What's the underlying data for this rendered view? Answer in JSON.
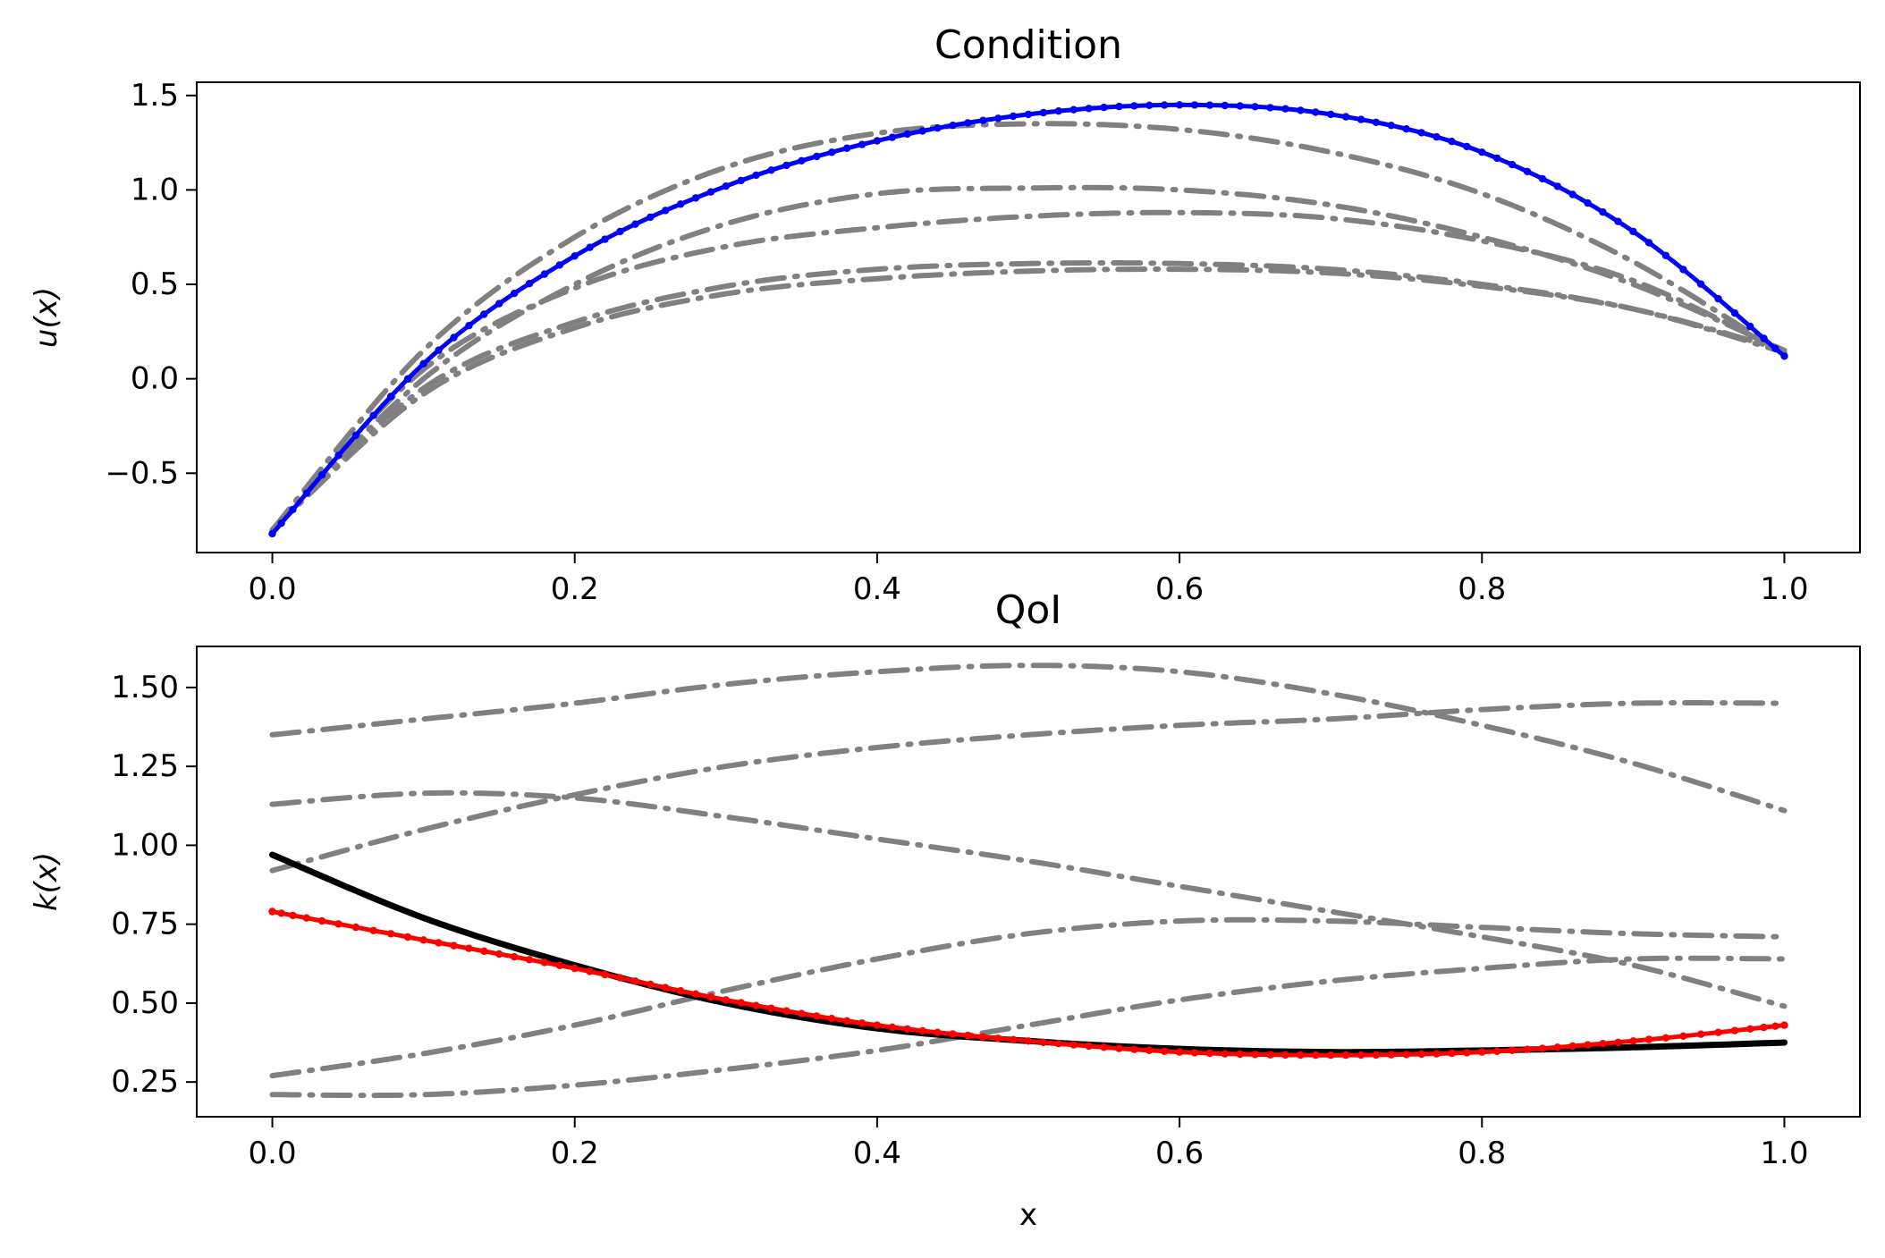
{
  "colors": {
    "gray": "#808080",
    "blue": "#0000ff",
    "red": "#ff0000",
    "black": "#000000"
  },
  "chart_data": [
    {
      "type": "line",
      "title": "Condition",
      "xlabel": "",
      "ylabel": "u(x)",
      "xlim": [
        -0.05,
        1.05
      ],
      "ylim": [
        -0.92,
        1.57
      ],
      "xticks": [
        0.0,
        0.2,
        0.4,
        0.6,
        0.8,
        1.0
      ],
      "xtick_labels": [
        "0.0",
        "0.2",
        "0.4",
        "0.6",
        "0.8",
        "1.0"
      ],
      "yticks": [
        -0.5,
        0.0,
        0.5,
        1.0,
        1.5
      ],
      "ytick_labels": [
        "−0.5",
        "0.0",
        "0.5",
        "1.0",
        "1.5"
      ],
      "grid": false,
      "x": [
        0.0,
        0.1,
        0.2,
        0.3,
        0.4,
        0.5,
        0.6,
        0.7,
        0.8,
        0.9,
        1.0
      ],
      "series": [
        {
          "style": "dashdot",
          "color": "gray",
          "values": [
            -0.8,
            0.15,
            0.75,
            1.12,
            1.3,
            1.35,
            1.32,
            1.2,
            0.98,
            0.62,
            0.13
          ]
        },
        {
          "style": "dashdot",
          "color": "gray",
          "values": [
            -0.8,
            0.0,
            0.5,
            0.82,
            0.98,
            1.01,
            1.0,
            0.92,
            0.75,
            0.5,
            0.15
          ]
        },
        {
          "style": "dashdot",
          "color": "gray",
          "values": [
            -0.8,
            0.05,
            0.48,
            0.7,
            0.8,
            0.86,
            0.88,
            0.85,
            0.73,
            0.52,
            0.14
          ]
        },
        {
          "style": "dashdot",
          "color": "gray",
          "values": [
            -0.8,
            -0.05,
            0.3,
            0.49,
            0.58,
            0.61,
            0.61,
            0.58,
            0.5,
            0.37,
            0.14
          ]
        },
        {
          "style": "dashdot",
          "color": "gray",
          "values": [
            -0.8,
            -0.08,
            0.27,
            0.45,
            0.53,
            0.57,
            0.58,
            0.56,
            0.49,
            0.37,
            0.15
          ]
        },
        {
          "style": "dotted-solid",
          "color": "blue",
          "values": [
            -0.82,
            0.08,
            0.65,
            1.02,
            1.26,
            1.4,
            1.45,
            1.4,
            1.2,
            0.78,
            0.12
          ]
        }
      ]
    },
    {
      "type": "line",
      "title": "QoI",
      "xlabel": "x",
      "ylabel": "k(x)",
      "xlim": [
        -0.05,
        1.05
      ],
      "ylim": [
        0.14,
        1.63
      ],
      "xticks": [
        0.0,
        0.2,
        0.4,
        0.6,
        0.8,
        1.0
      ],
      "xtick_labels": [
        "0.0",
        "0.2",
        "0.4",
        "0.6",
        "0.8",
        "1.0"
      ],
      "yticks": [
        0.25,
        0.5,
        0.75,
        1.0,
        1.25,
        1.5
      ],
      "ytick_labels": [
        "0.25",
        "0.50",
        "0.75",
        "1.00",
        "1.25",
        "1.50"
      ],
      "grid": false,
      "x": [
        0.0,
        0.1,
        0.2,
        0.3,
        0.4,
        0.5,
        0.6,
        0.7,
        0.8,
        0.9,
        1.0
      ],
      "series": [
        {
          "style": "dashdot",
          "color": "gray",
          "values": [
            1.35,
            1.4,
            1.45,
            1.51,
            1.55,
            1.57,
            1.55,
            1.48,
            1.38,
            1.26,
            1.11
          ]
        },
        {
          "style": "dashdot",
          "color": "gray",
          "values": [
            1.13,
            1.165,
            1.15,
            1.09,
            1.02,
            0.95,
            0.87,
            0.79,
            0.71,
            0.62,
            0.49
          ]
        },
        {
          "style": "dashdot",
          "color": "gray",
          "values": [
            0.92,
            1.05,
            1.16,
            1.25,
            1.31,
            1.35,
            1.38,
            1.4,
            1.43,
            1.45,
            1.45
          ]
        },
        {
          "style": "dashdot",
          "color": "gray",
          "values": [
            0.27,
            0.34,
            0.43,
            0.54,
            0.64,
            0.72,
            0.76,
            0.76,
            0.74,
            0.72,
            0.71
          ]
        },
        {
          "style": "dashdot",
          "color": "gray",
          "values": [
            0.21,
            0.21,
            0.24,
            0.29,
            0.35,
            0.43,
            0.51,
            0.57,
            0.61,
            0.64,
            0.64
          ]
        },
        {
          "style": "solid",
          "color": "black",
          "values": [
            0.97,
            0.77,
            0.62,
            0.5,
            0.42,
            0.38,
            0.355,
            0.345,
            0.35,
            0.36,
            0.375
          ]
        },
        {
          "style": "dotted-solid",
          "color": "red",
          "values": [
            0.79,
            0.7,
            0.61,
            0.51,
            0.43,
            0.38,
            0.345,
            0.335,
            0.345,
            0.38,
            0.43
          ]
        }
      ]
    }
  ]
}
